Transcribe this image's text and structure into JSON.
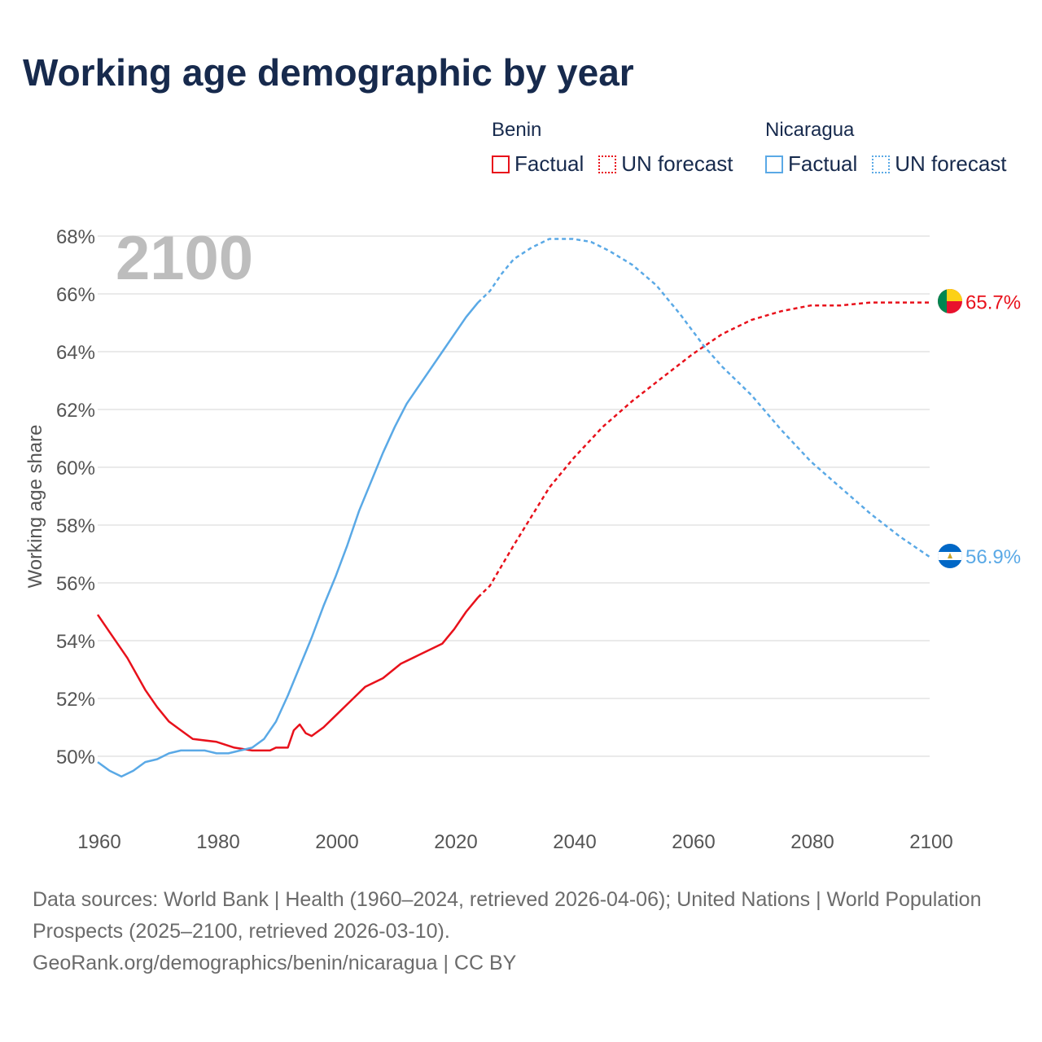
{
  "title": "Working age demographic by year",
  "legend": {
    "groups": [
      {
        "name": "Benin",
        "factual_label": "Factual",
        "forecast_label": "UN forecast",
        "color": "#e8111b"
      },
      {
        "name": "Nicaragua",
        "factual_label": "Factual",
        "forecast_label": "UN forecast",
        "color": "#5aa9e6"
      }
    ]
  },
  "year_watermark": "2100",
  "footer": {
    "sources": "Data sources: World Bank | Health (1960–2024, retrieved 2026-04-06); United Nations | World Population Prospects (2025–2100, retrieved 2026-03-10).",
    "attribution": "GeoRank.org/demographics/benin/nicaragua | CC BY"
  },
  "chart_data": {
    "type": "line",
    "title": "Working age demographic by year",
    "xlabel": "",
    "ylabel": "Working age share",
    "xlim": [
      1960,
      2100
    ],
    "ylim": [
      47.8,
      68.5
    ],
    "x_ticks": [
      1960,
      1980,
      2000,
      2020,
      2040,
      2060,
      2080,
      2100
    ],
    "x_tick_labels": [
      "1960",
      "1980",
      "2000",
      "2020",
      "2040",
      "2060",
      "2080",
      "2100"
    ],
    "y_ticks": [
      50,
      52,
      54,
      56,
      58,
      60,
      62,
      64,
      66,
      68
    ],
    "y_tick_labels": [
      "50%",
      "52%",
      "54%",
      "56%",
      "58%",
      "60%",
      "62%",
      "64%",
      "66%",
      "68%"
    ],
    "grid": true,
    "forecast_start": 2024,
    "series": [
      {
        "name": "Benin",
        "color": "#e8111b",
        "end_label": "65.7%",
        "points": [
          [
            1960,
            54.9
          ],
          [
            1962,
            54.3
          ],
          [
            1965,
            53.4
          ],
          [
            1968,
            52.3
          ],
          [
            1970,
            51.7
          ],
          [
            1972,
            51.2
          ],
          [
            1974,
            50.9
          ],
          [
            1976,
            50.6
          ],
          [
            1980,
            50.5
          ],
          [
            1983,
            50.3
          ],
          [
            1986,
            50.2
          ],
          [
            1989,
            50.2
          ],
          [
            1990,
            50.3
          ],
          [
            1992,
            50.3
          ],
          [
            1993,
            50.9
          ],
          [
            1994,
            51.1
          ],
          [
            1995,
            50.8
          ],
          [
            1996,
            50.7
          ],
          [
            1998,
            51.0
          ],
          [
            2000,
            51.4
          ],
          [
            2003,
            52.0
          ],
          [
            2005,
            52.4
          ],
          [
            2008,
            52.7
          ],
          [
            2011,
            53.2
          ],
          [
            2014,
            53.5
          ],
          [
            2018,
            53.9
          ],
          [
            2020,
            54.4
          ],
          [
            2022,
            55.0
          ],
          [
            2024,
            55.5
          ],
          [
            2026,
            55.9
          ],
          [
            2028,
            56.6
          ],
          [
            2030,
            57.3
          ],
          [
            2033,
            58.3
          ],
          [
            2036,
            59.3
          ],
          [
            2040,
            60.3
          ],
          [
            2045,
            61.4
          ],
          [
            2050,
            62.3
          ],
          [
            2055,
            63.1
          ],
          [
            2060,
            63.9
          ],
          [
            2065,
            64.6
          ],
          [
            2070,
            65.1
          ],
          [
            2075,
            65.4
          ],
          [
            2080,
            65.6
          ],
          [
            2085,
            65.6
          ],
          [
            2090,
            65.7
          ],
          [
            2100,
            65.7
          ]
        ]
      },
      {
        "name": "Nicaragua",
        "color": "#5aa9e6",
        "end_label": "56.9%",
        "points": [
          [
            1960,
            49.8
          ],
          [
            1962,
            49.5
          ],
          [
            1964,
            49.3
          ],
          [
            1966,
            49.5
          ],
          [
            1968,
            49.8
          ],
          [
            1970,
            49.9
          ],
          [
            1972,
            50.1
          ],
          [
            1974,
            50.2
          ],
          [
            1978,
            50.2
          ],
          [
            1980,
            50.1
          ],
          [
            1982,
            50.1
          ],
          [
            1984,
            50.2
          ],
          [
            1986,
            50.3
          ],
          [
            1988,
            50.6
          ],
          [
            1990,
            51.2
          ],
          [
            1992,
            52.1
          ],
          [
            1994,
            53.1
          ],
          [
            1996,
            54.1
          ],
          [
            1998,
            55.2
          ],
          [
            2000,
            56.2
          ],
          [
            2002,
            57.3
          ],
          [
            2004,
            58.5
          ],
          [
            2006,
            59.5
          ],
          [
            2008,
            60.5
          ],
          [
            2010,
            61.4
          ],
          [
            2012,
            62.2
          ],
          [
            2014,
            62.8
          ],
          [
            2016,
            63.4
          ],
          [
            2018,
            64.0
          ],
          [
            2020,
            64.6
          ],
          [
            2022,
            65.2
          ],
          [
            2024,
            65.7
          ],
          [
            2026,
            66.1
          ],
          [
            2028,
            66.7
          ],
          [
            2030,
            67.2
          ],
          [
            2033,
            67.6
          ],
          [
            2036,
            67.9
          ],
          [
            2040,
            67.9
          ],
          [
            2043,
            67.8
          ],
          [
            2046,
            67.5
          ],
          [
            2050,
            67.0
          ],
          [
            2054,
            66.3
          ],
          [
            2058,
            65.3
          ],
          [
            2062,
            64.2
          ],
          [
            2065,
            63.5
          ],
          [
            2070,
            62.5
          ],
          [
            2075,
            61.3
          ],
          [
            2080,
            60.2
          ],
          [
            2085,
            59.3
          ],
          [
            2090,
            58.4
          ],
          [
            2095,
            57.6
          ],
          [
            2100,
            56.9
          ]
        ]
      }
    ]
  }
}
